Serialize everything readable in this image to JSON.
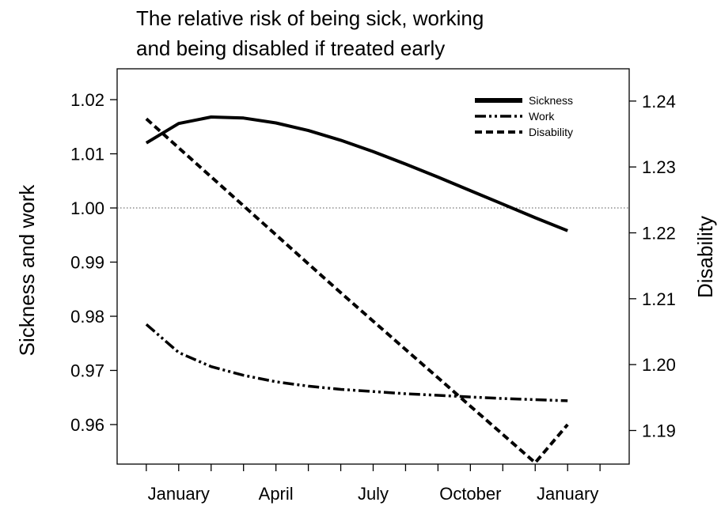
{
  "chart_data": {
    "type": "line",
    "title_lines": [
      "The relative risk of being sick, working",
      "and being disabled if treated early"
    ],
    "ylabel_left": "Sickness and work",
    "ylabel_right": "Disability",
    "x_tick_labels": [
      "January",
      "April",
      "July",
      "October",
      "January"
    ],
    "x_tick_months": [
      0,
      3,
      6,
      9,
      12
    ],
    "x_minor_tick_months": [
      -1,
      1,
      2,
      4,
      5,
      7,
      8,
      10,
      11,
      13
    ],
    "xlim": [
      -1.9,
      13.9
    ],
    "ylim_left": [
      0.9527,
      1.0257
    ],
    "ylim_right": [
      1.1849,
      1.2449
    ],
    "y_left_ticks": [
      "0.96",
      "0.97",
      "0.98",
      "0.99",
      "1.00",
      "1.01",
      "1.02"
    ],
    "y_right_ticks": [
      "1.19",
      "1.20",
      "1.21",
      "1.22",
      "1.23",
      "1.24"
    ],
    "reference_line": 1.0,
    "legend_position": "top-right",
    "series": [
      {
        "name": "Sickness",
        "axis": "left",
        "style": "solid",
        "x": [
          -1,
          0,
          1,
          2,
          3,
          4,
          5,
          6,
          7,
          8,
          9,
          10,
          11,
          12
        ],
        "y": [
          1.012,
          1.0156,
          1.0168,
          1.0166,
          1.0157,
          1.0143,
          1.0125,
          1.0104,
          1.0081,
          1.0057,
          1.0032,
          1.0007,
          0.9982,
          0.9958
        ]
      },
      {
        "name": "Work",
        "axis": "left",
        "style": "dash-dot-dot",
        "x": [
          -1,
          0,
          1,
          2,
          3,
          4,
          5,
          6,
          7,
          8,
          9,
          10,
          11,
          12
        ],
        "y": [
          0.9785,
          0.9733,
          0.9707,
          0.9691,
          0.9679,
          0.9671,
          0.9665,
          0.9661,
          0.9657,
          0.9654,
          0.9651,
          0.9648,
          0.9646,
          0.9644
        ]
      },
      {
        "name": "Disability",
        "axis": "right",
        "style": "dashed",
        "x": [
          -1,
          0,
          1,
          2,
          3,
          4,
          5,
          6,
          7,
          8,
          9,
          10,
          11,
          12
        ],
        "y": [
          1.2373,
          1.2329,
          1.2285,
          1.2241,
          1.2197,
          1.2153,
          1.2109,
          1.2066,
          1.2023,
          1.198,
          1.1937,
          1.1894,
          1.1851,
          1.1909
        ]
      }
    ]
  }
}
